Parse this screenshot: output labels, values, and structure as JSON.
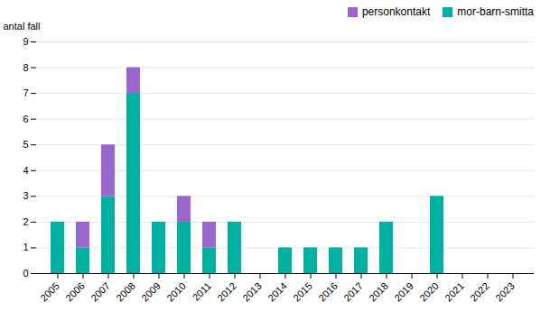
{
  "chart_data": {
    "type": "bar",
    "stacked": true,
    "ylabel": "antal fall",
    "categories": [
      "2005",
      "2006",
      "2007",
      "2008",
      "2009",
      "2010",
      "2011",
      "2012",
      "2013",
      "2014",
      "2015",
      "2016",
      "2017",
      "2018",
      "2019",
      "2020",
      "2021",
      "2022",
      "2023"
    ],
    "series": [
      {
        "name": "mor-barn-smitta",
        "color": "#00b0a0",
        "values": [
          2,
          1,
          3,
          7,
          2,
          2,
          1,
          2,
          0,
          1,
          1,
          1,
          1,
          2,
          0,
          3,
          0,
          0,
          0
        ]
      },
      {
        "name": "personkontakt",
        "color": "#9966cc",
        "values": [
          0,
          1,
          2,
          1,
          0,
          1,
          1,
          0,
          0,
          0,
          0,
          0,
          0,
          0,
          0,
          0,
          0,
          0,
          0
        ]
      }
    ],
    "ylim": [
      0,
      9
    ],
    "yticks": [
      0,
      1,
      2,
      3,
      4,
      5,
      6,
      7,
      8,
      9
    ],
    "grid": true,
    "legend": "upper right"
  }
}
